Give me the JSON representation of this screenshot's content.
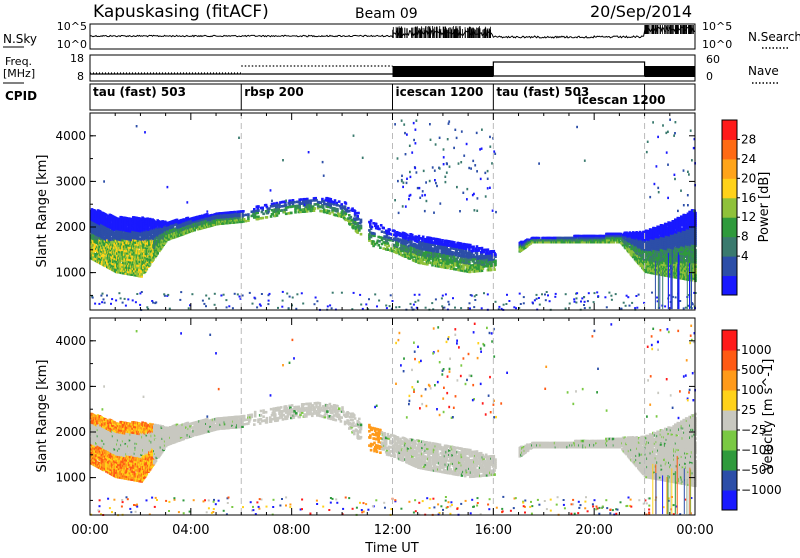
{
  "header": {
    "title": "Kapuskasing (fitACF)",
    "beam": "Beam 09",
    "date": "20/Sep/2014"
  },
  "noise_panel": {
    "left_label": "N.Sky",
    "left_ticks": [
      "10^5",
      "10^0"
    ],
    "right_ticks": [
      "10^5",
      "10^0"
    ],
    "right_label": "N.Search"
  },
  "freq_panel": {
    "left_label_line1": "Freq.",
    "left_label_line2": "[MHz]",
    "left_ticks": [
      "18",
      "8"
    ],
    "right_ticks": [
      "60",
      "0"
    ],
    "right_label": "Nave"
  },
  "cpid_panel": {
    "label": "CPID",
    "modes": [
      {
        "name": "tau (fast) 503",
        "start": 0,
        "end": 6
      },
      {
        "name": "rbsp 200",
        "start": 6,
        "end": 12
      },
      {
        "name": "icescan 1200",
        "start": 12,
        "end": 16
      },
      {
        "name": "tau (fast) 503",
        "start": 16,
        "end": 22
      },
      {
        "name": "icescan 1200",
        "start": 22,
        "end": 24
      }
    ]
  },
  "power_panel": {
    "ylabel": "Slant Range [km]",
    "yticks": [
      "1000",
      "2000",
      "3000",
      "4000"
    ],
    "colorbar_label": "Power [dB]",
    "colorbar_ticks": [
      "28",
      "24",
      "20",
      "16",
      "12",
      "8",
      "4"
    ],
    "colors": [
      "#1919ff",
      "#2c4ea8",
      "#3a7a6e",
      "#2f9a3c",
      "#8fc13a",
      "#ffd21a",
      "#ffa41a",
      "#ff6a14",
      "#ff1a1a"
    ]
  },
  "velocity_panel": {
    "ylabel": "Slant Range [km]",
    "yticks": [
      "1000",
      "2000",
      "3000",
      "4000"
    ],
    "colorbar_label": "Velocity [m s^-1]",
    "colorbar_ticks": [
      "1000",
      "500",
      "100",
      "25",
      "−25",
      "−100",
      "−500",
      "−1000"
    ],
    "colors": [
      "#1919ff",
      "#2c4ea8",
      "#2f9a3c",
      "#7ac943",
      "#c8c8c0",
      "#ffd21a",
      "#ff9a1a",
      "#ff5a14",
      "#ff1a1a"
    ]
  },
  "xaxis": {
    "label": "Time UT",
    "ticks": [
      "00:00",
      "04:00",
      "08:00",
      "12:00",
      "16:00",
      "20:00",
      "00:00"
    ]
  },
  "chart_data": {
    "type": "heatmap",
    "title": "Kapuskasing (fitACF)",
    "xlabel": "Time UT",
    "ylabel": "Slant Range [km]",
    "xlim": [
      "00:00",
      "24:00"
    ],
    "ylim": [
      180,
      4500
    ],
    "mode_change_times": [
      "06:00",
      "12:00",
      "16:00",
      "22:00"
    ],
    "series": [
      {
        "name": "Power [dB]",
        "range": [
          0,
          30
        ]
      },
      {
        "name": "Velocity [m s^-1]",
        "range": [
          -1000,
          1000
        ]
      }
    ],
    "echo_band_range_km": [
      {
        "t": 0.0,
        "lo": 1300,
        "hi": 2400
      },
      {
        "t": 1.0,
        "lo": 1000,
        "hi": 2200
      },
      {
        "t": 2.0,
        "lo": 900,
        "hi": 2200
      },
      {
        "t": 3.0,
        "lo": 1700,
        "hi": 2100
      },
      {
        "t": 4.0,
        "lo": 1900,
        "hi": 2200
      },
      {
        "t": 5.0,
        "lo": 2050,
        "hi": 2300
      },
      {
        "t": 6.0,
        "lo": 2100,
        "hi": 2350
      },
      {
        "t": 7.0,
        "lo": 2200,
        "hi": 2500
      },
      {
        "t": 8.0,
        "lo": 2300,
        "hi": 2600
      },
      {
        "t": 9.0,
        "lo": 2350,
        "hi": 2650
      },
      {
        "t": 10.0,
        "lo": 2200,
        "hi": 2550
      },
      {
        "t": 11.0,
        "lo": 1600,
        "hi": 2150
      },
      {
        "t": 12.0,
        "lo": 1450,
        "hi": 1900
      },
      {
        "t": 13.0,
        "lo": 1200,
        "hi": 1800
      },
      {
        "t": 14.0,
        "lo": 1100,
        "hi": 1700
      },
      {
        "t": 15.0,
        "lo": 1000,
        "hi": 1600
      },
      {
        "t": 16.0,
        "lo": 1050,
        "hi": 1450
      },
      {
        "t": 17.5,
        "lo": 1650,
        "hi": 1750
      },
      {
        "t": 19.0,
        "lo": 1650,
        "hi": 1780
      },
      {
        "t": 21.0,
        "lo": 1650,
        "hi": 1850
      },
      {
        "t": 22.0,
        "lo": 1000,
        "hi": 1900
      },
      {
        "t": 23.0,
        "lo": 900,
        "hi": 2100
      },
      {
        "t": 24.0,
        "lo": 800,
        "hi": 2400
      }
    ]
  }
}
